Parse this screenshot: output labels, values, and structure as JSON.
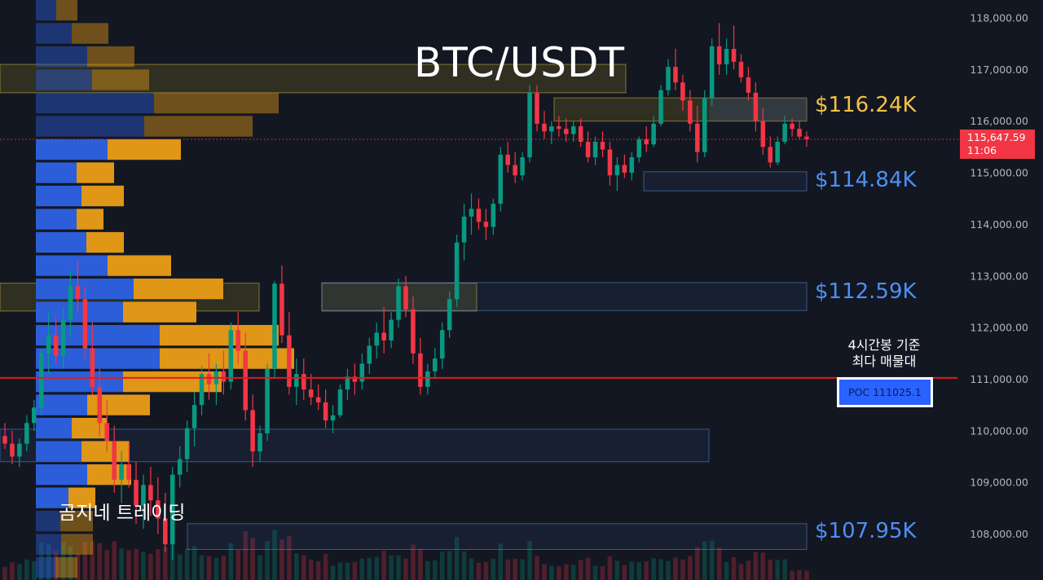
{
  "chart_data": {
    "type": "candlestick",
    "title": "BTC/USDT",
    "y_axis": {
      "ticks": [
        107000,
        108000,
        109000,
        110000,
        111000,
        112000,
        113000,
        114000,
        115000,
        116000,
        117000,
        118000
      ],
      "tick_labels": [
        "107,000.00",
        "108,000.00",
        "109,000.00",
        "110,000.00",
        "111,000.00",
        "112,000.00",
        "113,000.00",
        "114,000.00",
        "115,000.00",
        "116,000.00",
        "117,000.00",
        "118,000.00"
      ],
      "ylim": [
        106900,
        118450
      ],
      "position": "right"
    },
    "current_price": {
      "value": 115647.59,
      "label": "115,647.59",
      "countdown": "11:06"
    },
    "poc": {
      "value": 111025.1,
      "label": "POC  111025.1",
      "note": "4시간봉 기준\n최다 매물대"
    },
    "levels": [
      {
        "label": "$116.24K",
        "value": 116240,
        "color": "#f5c242"
      },
      {
        "label": "$114.84K",
        "value": 114840,
        "color": "#4d8ff5"
      },
      {
        "label": "$112.59K",
        "value": 112590,
        "color": "#4d8ff5"
      },
      {
        "label": "$107.95K",
        "value": 107950,
        "color": "#4d8ff5"
      }
    ],
    "supply_zones": [
      {
        "from": 116000,
        "to": 116450,
        "kind": "resistance"
      },
      {
        "from": 116550,
        "to": 117100,
        "kind": "resistance"
      },
      {
        "from": 112320,
        "to": 112860,
        "kind": "resistance"
      }
    ],
    "demand_zones": [
      {
        "from": 114650,
        "to": 115020
      },
      {
        "from": 112330,
        "to": 112870
      },
      {
        "from": 109400,
        "to": 110030
      },
      {
        "from": 107700,
        "to": 108200
      }
    ],
    "volume_profile": [
      {
        "from": 117950,
        "to": 118350,
        "buy": 25,
        "sell": 26
      },
      {
        "from": 117500,
        "to": 117900,
        "buy": 44,
        "sell": 45
      },
      {
        "from": 117050,
        "to": 117450,
        "buy": 63,
        "sell": 58
      },
      {
        "from": 116600,
        "to": 117000,
        "buy": 69,
        "sell": 70
      },
      {
        "from": 116150,
        "to": 116550,
        "buy": 145,
        "sell": 153
      },
      {
        "from": 115700,
        "to": 116100,
        "buy": 133,
        "sell": 133
      },
      {
        "from": 115250,
        "to": 115650,
        "buy": 88,
        "sell": 90
      },
      {
        "from": 114800,
        "to": 115200,
        "buy": 50,
        "sell": 46
      },
      {
        "from": 114350,
        "to": 114750,
        "buy": 56,
        "sell": 52
      },
      {
        "from": 113900,
        "to": 114300,
        "buy": 50,
        "sell": 33
      },
      {
        "from": 113450,
        "to": 113850,
        "buy": 62,
        "sell": 46
      },
      {
        "from": 113000,
        "to": 113400,
        "buy": 88,
        "sell": 78
      },
      {
        "from": 112550,
        "to": 112950,
        "buy": 120,
        "sell": 110
      },
      {
        "from": 112100,
        "to": 112500,
        "buy": 107,
        "sell": 90
      },
      {
        "from": 111650,
        "to": 112050,
        "buy": 152,
        "sell": 146
      },
      {
        "from": 111200,
        "to": 111600,
        "buy": 152,
        "sell": 165
      },
      {
        "from": 110750,
        "to": 111150,
        "buy": 107,
        "sell": 121
      },
      {
        "from": 110300,
        "to": 110700,
        "buy": 63,
        "sell": 77
      },
      {
        "from": 109850,
        "to": 110250,
        "buy": 44,
        "sell": 43
      },
      {
        "from": 109400,
        "to": 109800,
        "buy": 56,
        "sell": 59
      },
      {
        "from": 108950,
        "to": 109350,
        "buy": 63,
        "sell": 54
      },
      {
        "from": 108500,
        "to": 108900,
        "buy": 40,
        "sell": 33
      },
      {
        "from": 108050,
        "to": 108450,
        "buy": 30,
        "sell": 40
      },
      {
        "from": 107600,
        "to": 108000,
        "buy": 31,
        "sell": 39
      },
      {
        "from": 107150,
        "to": 107550,
        "buy": 24,
        "sell": 27
      }
    ],
    "candles": [
      [
        109900,
        110150,
        109650,
        109750
      ],
      [
        109750,
        110000,
        109350,
        109500
      ],
      [
        109500,
        109850,
        109300,
        109750
      ],
      [
        109750,
        110300,
        109600,
        110150
      ],
      [
        110150,
        110600,
        110000,
        110450
      ],
      [
        110450,
        111600,
        110300,
        111500
      ],
      [
        111500,
        112300,
        111100,
        111850
      ],
      [
        111850,
        112200,
        111300,
        111450
      ],
      [
        111450,
        112400,
        111200,
        112150
      ],
      [
        112150,
        113100,
        111800,
        112800
      ],
      [
        112800,
        113300,
        112300,
        112550
      ],
      [
        112550,
        112800,
        111400,
        111600
      ],
      [
        111600,
        112100,
        110700,
        110850
      ],
      [
        110850,
        111200,
        109900,
        110150
      ],
      [
        110150,
        110600,
        109600,
        109800
      ],
      [
        109800,
        110100,
        108800,
        109050
      ],
      [
        109050,
        109600,
        108600,
        109350
      ],
      [
        109350,
        109800,
        108900,
        109050
      ],
      [
        109050,
        109400,
        108200,
        108550
      ],
      [
        108550,
        109150,
        108100,
        108950
      ],
      [
        108950,
        109300,
        108350,
        108650
      ],
      [
        108650,
        109100,
        108000,
        108300
      ],
      [
        108300,
        108800,
        107650,
        107800
      ],
      [
        107800,
        109300,
        107500,
        109150
      ],
      [
        109150,
        109700,
        108900,
        109450
      ],
      [
        109450,
        110200,
        109200,
        110050
      ],
      [
        110050,
        110750,
        109700,
        110500
      ],
      [
        110500,
        111250,
        110300,
        111100
      ],
      [
        111100,
        111500,
        110600,
        110900
      ],
      [
        110900,
        111300,
        110500,
        111150
      ],
      [
        111150,
        111550,
        110700,
        110950
      ],
      [
        110950,
        112100,
        110800,
        111950
      ],
      [
        111950,
        112300,
        111300,
        111550
      ],
      [
        111550,
        111900,
        110200,
        110400
      ],
      [
        110400,
        110700,
        109300,
        109600
      ],
      [
        109600,
        110100,
        109400,
        109950
      ],
      [
        109950,
        111300,
        109800,
        111200
      ],
      [
        111200,
        112900,
        111000,
        112850
      ],
      [
        112850,
        113200,
        111700,
        111850
      ],
      [
        111850,
        112300,
        110700,
        110850
      ],
      [
        110850,
        111400,
        110500,
        111100
      ],
      [
        111100,
        111400,
        110600,
        110800
      ],
      [
        110800,
        111100,
        110500,
        110650
      ],
      [
        110650,
        110900,
        110400,
        110550
      ],
      [
        110550,
        110800,
        110050,
        110200
      ],
      [
        110200,
        110500,
        109950,
        110300
      ],
      [
        110300,
        110900,
        110250,
        110800
      ],
      [
        110800,
        111200,
        110600,
        111050
      ],
      [
        111050,
        111300,
        110700,
        110950
      ],
      [
        110950,
        111500,
        110800,
        111300
      ],
      [
        111300,
        111800,
        111100,
        111650
      ],
      [
        111650,
        112100,
        111400,
        111900
      ],
      [
        111900,
        112400,
        111500,
        111750
      ],
      [
        111750,
        112300,
        111600,
        112150
      ],
      [
        112150,
        112950,
        112000,
        112800
      ],
      [
        112800,
        113000,
        112200,
        112350
      ],
      [
        112350,
        112600,
        111300,
        111500
      ],
      [
        111500,
        111800,
        110700,
        110850
      ],
      [
        110850,
        111300,
        110700,
        111150
      ],
      [
        111150,
        111600,
        111000,
        111400
      ],
      [
        111400,
        112100,
        111200,
        111950
      ],
      [
        111950,
        112700,
        111800,
        112550
      ],
      [
        112550,
        113800,
        112400,
        113650
      ],
      [
        113650,
        114400,
        113300,
        114150
      ],
      [
        114150,
        114600,
        113800,
        114300
      ],
      [
        114300,
        114500,
        113900,
        114050
      ],
      [
        114050,
        114300,
        113700,
        113950
      ],
      [
        113950,
        114500,
        113800,
        114400
      ],
      [
        114400,
        115500,
        114250,
        115350
      ],
      [
        115350,
        115600,
        115000,
        115150
      ],
      [
        115150,
        115400,
        114800,
        114950
      ],
      [
        114950,
        115400,
        114850,
        115300
      ],
      [
        115300,
        116700,
        115200,
        116550
      ],
      [
        116550,
        116700,
        115800,
        115950
      ],
      [
        115950,
        116200,
        115650,
        115800
      ],
      [
        115800,
        116000,
        115550,
        115900
      ],
      [
        115900,
        116100,
        115700,
        115850
      ],
      [
        115850,
        116050,
        115600,
        115750
      ],
      [
        115750,
        116000,
        115600,
        115900
      ],
      [
        115900,
        116050,
        115500,
        115600
      ],
      [
        115600,
        115800,
        115200,
        115300
      ],
      [
        115300,
        115700,
        115150,
        115600
      ],
      [
        115600,
        115800,
        115300,
        115450
      ],
      [
        115450,
        115600,
        114750,
        114950
      ],
      [
        114950,
        115300,
        114650,
        115150
      ],
      [
        115150,
        115350,
        114900,
        115000
      ],
      [
        115000,
        115400,
        114850,
        115300
      ],
      [
        115300,
        115700,
        115200,
        115650
      ],
      [
        115650,
        115900,
        115400,
        115550
      ],
      [
        115550,
        116100,
        115500,
        115950
      ],
      [
        115950,
        116700,
        115900,
        116600
      ],
      [
        116600,
        117200,
        116500,
        117050
      ],
      [
        117050,
        117400,
        116600,
        116750
      ],
      [
        116750,
        116900,
        116200,
        116400
      ],
      [
        116400,
        116600,
        115800,
        115950
      ],
      [
        115950,
        116300,
        115200,
        115400
      ],
      [
        115400,
        116600,
        115300,
        116450
      ],
      [
        116450,
        117600,
        116300,
        117450
      ],
      [
        117450,
        117900,
        116900,
        117100
      ],
      [
        117100,
        117600,
        116900,
        117400
      ],
      [
        117400,
        117850,
        117000,
        117150
      ],
      [
        117150,
        117300,
        116750,
        116850
      ],
      [
        116850,
        117050,
        116400,
        116550
      ],
      [
        116550,
        116750,
        115800,
        116000
      ],
      [
        116000,
        116250,
        115350,
        115500
      ],
      [
        115500,
        115700,
        115100,
        115200
      ],
      [
        115200,
        115700,
        115150,
        115600
      ],
      [
        115600,
        116100,
        115550,
        115950
      ],
      [
        115950,
        116050,
        115700,
        115850
      ],
      [
        115850,
        116000,
        115650,
        115700
      ],
      [
        115700,
        115800,
        115500,
        115650
      ]
    ],
    "grid": false,
    "watermark": "곰지네 트레이딩"
  },
  "colors": {
    "background": "#131722",
    "up": "#089981",
    "down": "#f23645",
    "poc_line": "#e21b1b",
    "profile_buy": "#2b5ed8",
    "profile_sell": "#e09617",
    "axis_text": "#b2b5be"
  }
}
